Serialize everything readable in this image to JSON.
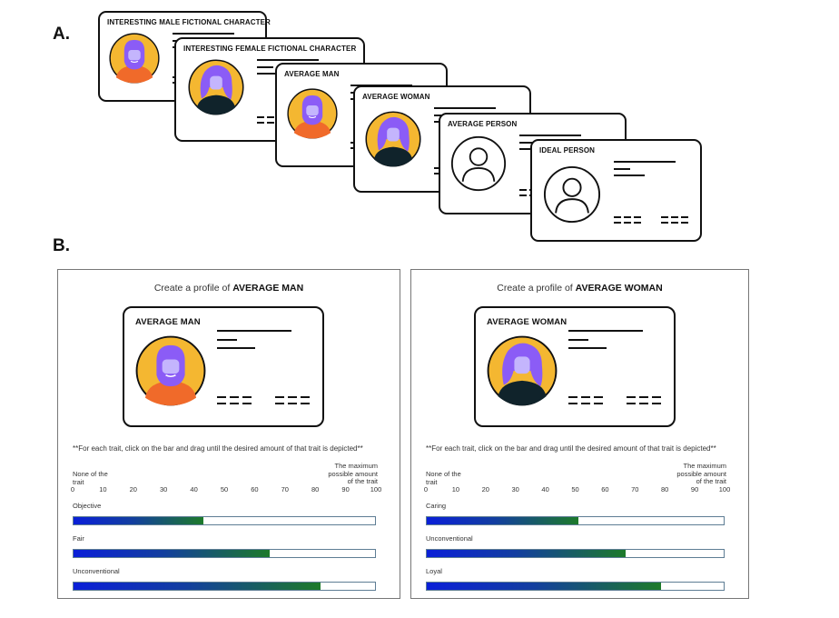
{
  "labels": {
    "a": "A.",
    "b": "B."
  },
  "cards": [
    {
      "title": "INTERESTING MALE FICTIONAL CHARACTER",
      "avatar": "male"
    },
    {
      "title": "INTERESTING FEMALE FICTIONAL CHARACTER",
      "avatar": "female"
    },
    {
      "title": "AVERAGE MAN",
      "avatar": "male"
    },
    {
      "title": "AVERAGE WOMAN",
      "avatar": "female"
    },
    {
      "title": "AVERAGE PERSON",
      "avatar": "outline"
    },
    {
      "title": "IDEAL PERSON",
      "avatar": "outline"
    }
  ],
  "panels": [
    {
      "heading_prefix": "Create a profile of ",
      "heading_subject": "AVERAGE MAN",
      "card_title": "AVERAGE MAN",
      "avatar": "male",
      "instruction": "**For each trait, click on the bar and drag until the desired amount of that trait is depicted**",
      "scale_min_label": "None of the trait",
      "scale_max_label": "The maximum possible amount of the trait",
      "ticks": [
        "0",
        "10",
        "20",
        "30",
        "40",
        "50",
        "60",
        "70",
        "80",
        "90",
        "100"
      ],
      "traits": [
        {
          "name": "Objective",
          "value": 43
        },
        {
          "name": "Fair",
          "value": 65
        },
        {
          "name": "Unconventional",
          "value": 82
        }
      ]
    },
    {
      "heading_prefix": "Create a profile of ",
      "heading_subject": "AVERAGE WOMAN",
      "card_title": "AVERAGE WOMAN",
      "avatar": "female",
      "instruction": "**For each trait, click on the bar and drag until the desired amount of that trait is depicted**",
      "scale_min_label": "None of the trait",
      "scale_max_label": "The maximum possible amount of the trait",
      "ticks": [
        "0",
        "10",
        "20",
        "30",
        "40",
        "50",
        "60",
        "70",
        "80",
        "90",
        "100"
      ],
      "traits": [
        {
          "name": "Caring",
          "value": 51
        },
        {
          "name": "Unconventional",
          "value": 67
        },
        {
          "name": "Loyal",
          "value": 79
        }
      ]
    }
  ],
  "colors": {
    "avatar_purple": "#8b5cf6",
    "avatar_gold": "#f4b731",
    "shirt_orange": "#f06a2a",
    "shirt_dark": "#10232b",
    "bar_start": "#0a1fd8",
    "bar_end": "#1d7a2a"
  },
  "icons": {
    "male": "bearded-person-icon",
    "female": "long-hair-person-icon",
    "outline": "person-outline-icon"
  }
}
